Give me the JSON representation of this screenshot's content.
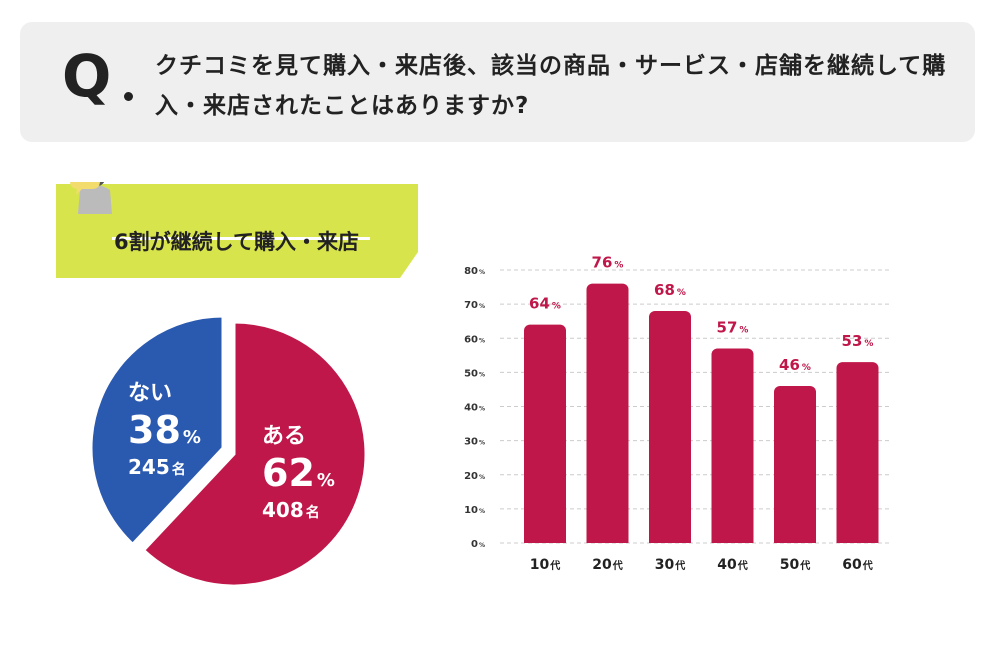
{
  "question": {
    "mark": "Q",
    "text": "クチコミを見て購入・来店後、該当の商品・サービス・店舗を継続して購入・来店されたことはありますか?"
  },
  "banner": {
    "text": "6割が継続して購入・来店",
    "icon": "person-with-speech-bubble-icon"
  },
  "colors": {
    "crimson": "#c0174a",
    "blue": "#2a59b0",
    "lime": "#d7e44c",
    "grid": "#cccccc"
  },
  "chart_data": [
    {
      "type": "pie",
      "title": "",
      "slices": [
        {
          "label": "ある",
          "percent": 62,
          "percent_unit": "%",
          "count": 408,
          "count_unit": "名"
        },
        {
          "label": "ない",
          "percent": 38,
          "percent_unit": "%",
          "count": 245,
          "count_unit": "名"
        }
      ]
    },
    {
      "type": "bar",
      "title": "",
      "categories": [
        "10代",
        "20代",
        "30代",
        "40代",
        "50代",
        "60代"
      ],
      "values": [
        64,
        76,
        68,
        57,
        46,
        53
      ],
      "value_unit": "%",
      "ylim": [
        0,
        80
      ],
      "yticks": [
        0,
        10,
        20,
        30,
        40,
        50,
        60,
        70,
        80
      ],
      "ytick_unit": "%",
      "grid": true,
      "xlabel": "",
      "ylabel": ""
    }
  ]
}
